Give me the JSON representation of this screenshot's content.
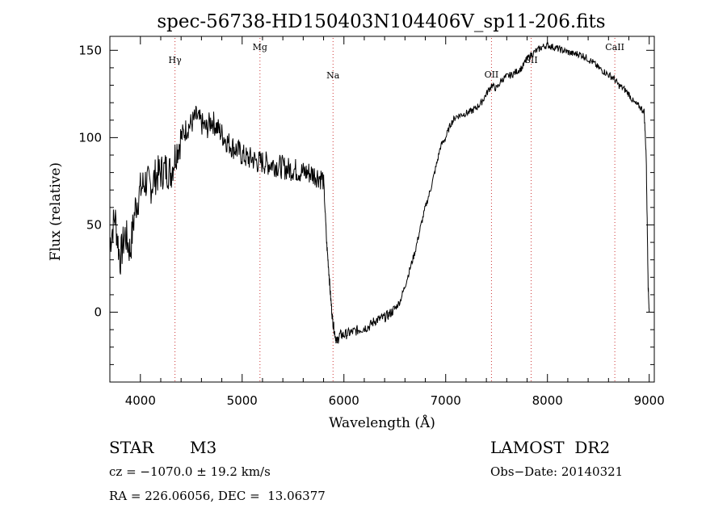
{
  "chart_data": {
    "type": "line",
    "title": "spec-56738-HD150403N104406V_sp11-206.fits",
    "xlabel": "Wavelength (Å)",
    "ylabel": "Flux (relative)",
    "xlim": [
      3700,
      9050
    ],
    "ylim": [
      -40,
      158
    ],
    "x_ticks": [
      4000,
      5000,
      6000,
      7000,
      8000,
      9000
    ],
    "y_ticks": [
      0,
      50,
      100,
      150
    ],
    "grid": false,
    "line_color": "#000000",
    "line_marker_color": "#cc3333",
    "lines": [
      {
        "label": "Hγ",
        "wavelength": 4340
      },
      {
        "label": "Mg",
        "wavelength": 5175
      },
      {
        "label": "Na",
        "wavelength": 5893
      },
      {
        "label": "OII",
        "wavelength": 7450
      },
      {
        "label": "SII",
        "wavelength": 7840
      },
      {
        "label": "CaII",
        "wavelength": 8662
      }
    ],
    "series": [
      {
        "x": [
          3700,
          3750,
          3800,
          3850,
          3900,
          3950,
          4000,
          4050,
          4100,
          4150,
          4200,
          4250,
          4300,
          4350,
          4400,
          4450,
          4500,
          4550,
          4600,
          4650,
          4700,
          4750,
          4800,
          4850,
          4900,
          4950,
          5000,
          5050,
          5100,
          5150,
          5200,
          5250,
          5300,
          5350,
          5400,
          5450,
          5500,
          5550,
          5600,
          5650,
          5700,
          5750,
          5800,
          5830,
          5850,
          5870,
          5890,
          5910,
          5930,
          5960,
          6000,
          6050,
          6100,
          6150,
          6200,
          6250,
          6300,
          6350,
          6400,
          6450,
          6500,
          6550,
          6600,
          6650,
          6700,
          6750,
          6800,
          6850,
          6900,
          6950,
          7000,
          7050,
          7100,
          7150,
          7200,
          7250,
          7300,
          7350,
          7400,
          7450,
          7500,
          7550,
          7600,
          7650,
          7700,
          7750,
          7800,
          7850,
          7900,
          7950,
          8000,
          8050,
          8100,
          8150,
          8200,
          8250,
          8300,
          8350,
          8400,
          8450,
          8500,
          8550,
          8600,
          8650,
          8700,
          8750,
          8800,
          8850,
          8900,
          8950,
          8970,
          8990,
          9000
        ],
        "y": [
          40,
          55,
          30,
          45,
          35,
          60,
          70,
          75,
          72,
          78,
          80,
          82,
          80,
          92,
          100,
          105,
          108,
          112,
          108,
          105,
          110,
          106,
          102,
          98,
          95,
          93,
          90,
          88,
          88,
          86,
          86,
          85,
          85,
          84,
          83,
          82,
          82,
          81,
          80,
          80,
          79,
          78,
          76,
          40,
          25,
          8,
          -5,
          -12,
          -17,
          -13,
          -13,
          -12,
          -11,
          -10,
          -9,
          -8,
          -5,
          -4,
          -3,
          -1,
          2,
          6,
          15,
          25,
          35,
          48,
          60,
          70,
          82,
          95,
          100,
          108,
          112,
          113,
          114,
          115,
          117,
          120,
          125,
          130,
          128,
          133,
          135,
          136,
          138,
          140,
          145,
          148,
          150,
          152,
          153,
          152,
          151,
          150,
          149,
          148,
          148,
          147,
          145,
          143,
          140,
          138,
          136,
          134,
          130,
          128,
          125,
          120,
          118,
          115,
          90,
          15,
          0
        ]
      }
    ]
  },
  "info": {
    "object_type": "STAR",
    "subclass": "M3",
    "survey": "LAMOST  DR2",
    "cz": "cz = −1070.0 ± 19.2 km/s",
    "obs_date": "Obs−Date: 20140321",
    "coords": "RA = 226.06056, DEC =  13.06377"
  }
}
